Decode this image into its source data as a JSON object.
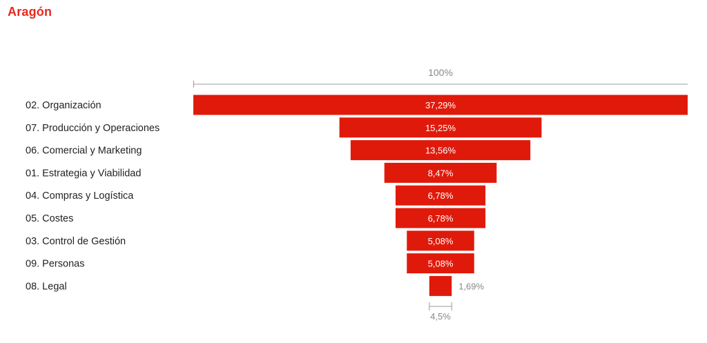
{
  "page": {
    "title": "Aragón"
  },
  "colors": {
    "title": "#e8281c",
    "bar": "#e01a0b",
    "bar_label": "#ffffff",
    "outside_label": "#888888",
    "category_label": "#222222",
    "axis": "#999999"
  },
  "chart_data": {
    "type": "bar",
    "orientation": "horizontal",
    "style": "funnel (centered bars)",
    "title": "",
    "xlabel": "",
    "ylabel": "",
    "scale_top_label": "100%",
    "scale_bottom_label": "4,5%",
    "grid": false,
    "legend": "none",
    "categories": [
      "02. Organización",
      "07. Producción y Operaciones",
      "06. Comercial y Marketing",
      "01. Estrategia y Viabilidad",
      "04. Compras y Logística",
      "05. Costes",
      "03. Control de Gestión",
      "09. Personas",
      "08. Legal"
    ],
    "values": [
      37.29,
      15.25,
      13.56,
      8.47,
      6.78,
      6.78,
      5.08,
      5.08,
      1.69
    ],
    "labels": [
      "37,29%",
      "15,25%",
      "13,56%",
      "8,47%",
      "6,78%",
      "6,78%",
      "5,08%",
      "5,08%",
      "1,69%"
    ]
  }
}
